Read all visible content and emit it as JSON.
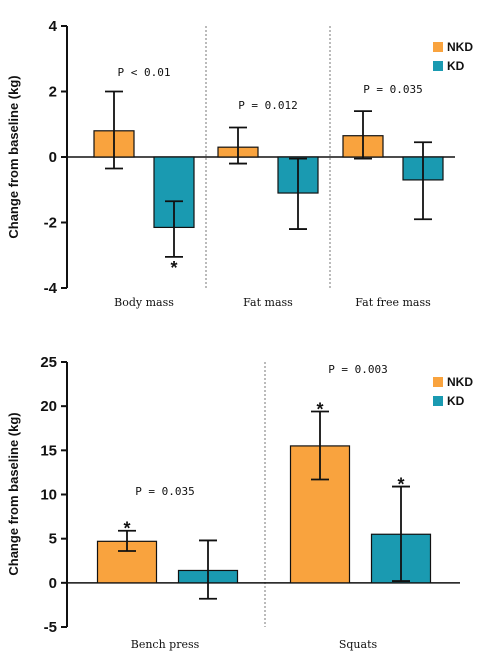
{
  "colors": {
    "NKD": "#f9a33e",
    "KD": "#1a9ab1"
  },
  "chart_data": [
    {
      "type": "bar",
      "ylabel": "Change from baseline (kg)",
      "ylim": [
        -4,
        4
      ],
      "yticks": [
        4,
        2,
        0,
        -2,
        -4
      ],
      "categories": [
        "Body mass",
        "Fat mass",
        "Fat free mass"
      ],
      "legend": {
        "placement": "top-right",
        "entries": [
          "NKD",
          "KD"
        ]
      },
      "series": [
        {
          "name": "NKD",
          "values": [
            0.8,
            0.3,
            0.65
          ],
          "error_upper": [
            2.0,
            0.9,
            1.4
          ],
          "error_lower": [
            -0.35,
            -0.2,
            -0.05
          ],
          "stars": [
            "",
            "",
            ""
          ]
        },
        {
          "name": "KD",
          "values": [
            -2.15,
            -1.1,
            -0.7
          ],
          "error_upper": [
            -1.35,
            -0.05,
            0.45
          ],
          "error_lower": [
            -3.05,
            -2.2,
            -1.9
          ],
          "stars": [
            "*",
            "",
            ""
          ]
        }
      ],
      "annotations": [
        "P < 0.01",
        "P = 0.012",
        "P = 0.035"
      ],
      "separators": true
    },
    {
      "type": "bar",
      "ylabel": "Change from baseline (kg)",
      "ylim": [
        -5,
        25
      ],
      "yticks": [
        25,
        20,
        15,
        10,
        5,
        0,
        -5
      ],
      "categories": [
        "Bench press",
        "Squats"
      ],
      "legend": {
        "placement": "top-right",
        "entries": [
          "NKD",
          "KD"
        ]
      },
      "series": [
        {
          "name": "NKD",
          "values": [
            4.7,
            15.5
          ],
          "error_upper": [
            5.9,
            19.4
          ],
          "error_lower": [
            3.6,
            11.7
          ],
          "stars": [
            "*",
            "*"
          ]
        },
        {
          "name": "KD",
          "values": [
            1.4,
            5.5
          ],
          "error_upper": [
            4.8,
            10.9
          ],
          "error_lower": [
            -1.8,
            0.2
          ],
          "stars": [
            "",
            "*"
          ]
        }
      ],
      "annotations": [
        "P = 0.035",
        "P = 0.003"
      ],
      "separators": true
    }
  ]
}
